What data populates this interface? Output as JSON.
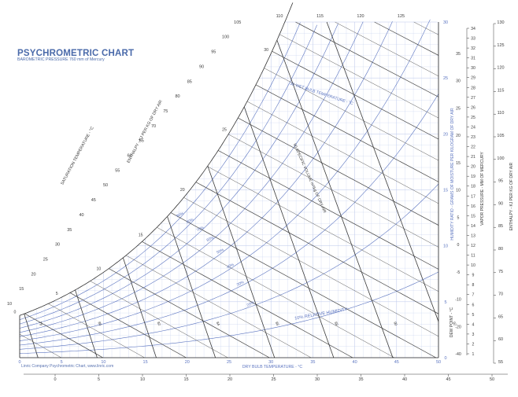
{
  "chart_data": {
    "type": "psychrometric",
    "title": "PSYCHROMETRIC CHART",
    "subtitle": "BAROMETRIC PRESSURE 760 mm of Mercury",
    "credit": "Linric Company Psychrometric Chart, www.linric.com",
    "xlabel": "DRY BULB TEMPERATURE - °C",
    "xlim": [
      0,
      50
    ],
    "x_ticks": [
      "0",
      "5",
      "10",
      "15",
      "20",
      "25",
      "30",
      "35",
      "40",
      "45",
      "50"
    ],
    "ylabel": "HUMIDITY RATIO - GRAMS OF MOISTURE PER KILOGRAM OF DRY AIR",
    "ylim": [
      0,
      30
    ],
    "y_ticks": [
      "0",
      "5",
      "10",
      "15",
      "20",
      "25",
      "30"
    ],
    "relative_humidity_percent": [
      10,
      20,
      30,
      40,
      50,
      60,
      70,
      80,
      90
    ],
    "relative_humidity_labels": [
      "10% RELATIVE HUMIDITY",
      "20%",
      "30%",
      "40%",
      "50%",
      "60%",
      "70%",
      "80%",
      "90%"
    ],
    "wet_bulb_label": "30 WET BULB TEMPERATURE - °C",
    "wet_bulb_values": [
      0,
      5,
      10,
      15,
      20,
      25,
      30
    ],
    "volume_label": "90 SPECIFIC VOLUME m³/kg OF DRY AIR",
    "volume_values": [
      0.78,
      0.8,
      0.82,
      0.84,
      0.86,
      0.88,
      0.9,
      0.92
    ],
    "volume_tick_labels": [
      "78",
      "80",
      "82",
      "84",
      "86",
      "88",
      "90",
      "92"
    ],
    "saturation_label": "SATURATION TEMPERATURE - °C",
    "saturation_values": [
      -5,
      0,
      5,
      10,
      15,
      20,
      25,
      30
    ],
    "enthalpy_label": "ENTHALPY - KJ PER KG OF DRY AIR",
    "enthalpy_diag_ticks": [
      10,
      15,
      20,
      25,
      30,
      35,
      40,
      45,
      50,
      55,
      60,
      65,
      70,
      75,
      80,
      85,
      90,
      95,
      100,
      105,
      110,
      115,
      120,
      125
    ],
    "enthalpy_bottom_ticks": [
      "0",
      "5",
      "10",
      "15",
      "20",
      "25",
      "30",
      "35",
      "40",
      "45",
      "50",
      "55"
    ],
    "enthalpy_right_ticks": [
      "55",
      "60",
      "65",
      "70",
      "75",
      "80",
      "85",
      "90",
      "95",
      "100",
      "105",
      "110",
      "115",
      "120",
      "125",
      "130"
    ],
    "dew_point_label": "DEW POINT - °C",
    "dew_point_ticks": [
      "-40",
      "-20",
      "-10",
      "-5",
      "0",
      "5",
      "10",
      "15",
      "20",
      "25",
      "30",
      "35"
    ],
    "vapor_pressure_label": "VAPOR PRESSURE - MM OF MERCURY",
    "vapor_pressure_ticks": [
      "1",
      "2",
      "3",
      "4",
      "5",
      "6",
      "7",
      "8",
      "9",
      "10",
      "11",
      "12",
      "13",
      "14",
      "15",
      "16",
      "17",
      "18",
      "19",
      "20",
      "21",
      "22",
      "23",
      "24",
      "25",
      "26",
      "27",
      "28",
      "29",
      "30",
      "31",
      "32",
      "33",
      "34"
    ],
    "enthalpy_right_label": "ENTHALPY - KJ PER KG OF DRY AIR"
  }
}
